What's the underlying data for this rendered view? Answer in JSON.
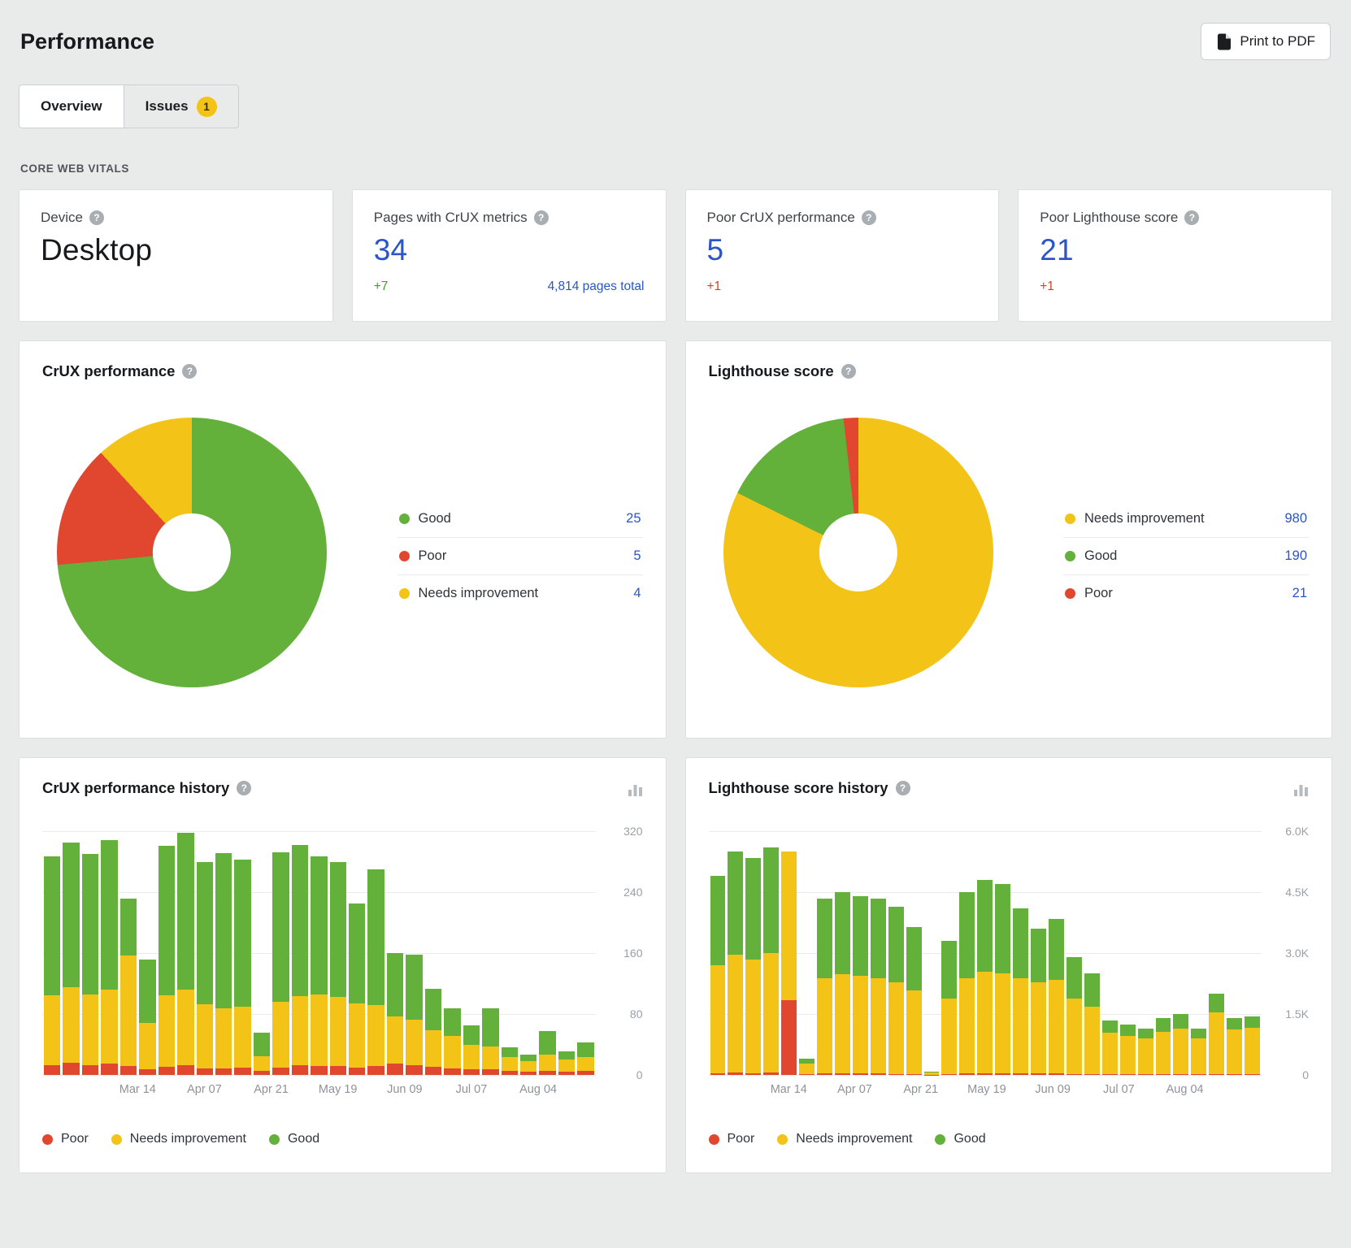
{
  "colors": {
    "good": "#63b13a",
    "poor": "#e1472e",
    "needs_improvement": "#f3c317",
    "blue": "#2a55cb",
    "delta_up": "#3f9e32",
    "delta_down": "#da3f28"
  },
  "header": {
    "title": "Performance",
    "print_button": "Print to PDF"
  },
  "tabs": [
    {
      "label": "Overview",
      "active": true
    },
    {
      "label": "Issues",
      "badge": "1"
    }
  ],
  "section_label": "CORE WEB VITALS",
  "stat_cards": [
    {
      "label": "Device",
      "value": "Desktop"
    },
    {
      "label": "Pages with CrUX metrics",
      "value": "34",
      "delta": "+7",
      "extra_link": "4,814 pages total"
    },
    {
      "label": "Poor CrUX performance",
      "value": "5",
      "delta": "+1"
    },
    {
      "label": "Poor Lighthouse score",
      "value": "21",
      "delta": "+1"
    }
  ],
  "chart_data": [
    {
      "type": "pie",
      "title": "CrUX performance",
      "donut": true,
      "slices": [
        {
          "label": "Good",
          "value": 25,
          "color_key": "good"
        },
        {
          "label": "Poor",
          "value": 5,
          "color_key": "poor"
        },
        {
          "label": "Needs improvement",
          "value": 4,
          "color_key": "needs_improvement"
        }
      ]
    },
    {
      "type": "pie",
      "title": "Lighthouse score",
      "donut": true,
      "slices": [
        {
          "label": "Needs improvement",
          "value": 980,
          "color_key": "needs_improvement"
        },
        {
          "label": "Good",
          "value": 190,
          "color_key": "good"
        },
        {
          "label": "Poor",
          "value": 21,
          "color_key": "poor"
        }
      ]
    },
    {
      "type": "bar",
      "title": "CrUX performance history",
      "stacked": true,
      "ymax": 320,
      "y_ticks": [
        "320",
        "240",
        "160",
        "80",
        "0"
      ],
      "series_order": [
        "poor",
        "needs_improvement",
        "good"
      ],
      "legend": [
        {
          "label": "Poor",
          "color_key": "poor"
        },
        {
          "label": "Needs improvement",
          "color_key": "needs_improvement"
        },
        {
          "label": "Good",
          "color_key": "good"
        }
      ],
      "x_ticks": [
        {
          "label": "Mar 14",
          "bar": 4.5
        },
        {
          "label": "Apr 07",
          "bar": 8
        },
        {
          "label": "Apr 21",
          "bar": 11.5
        },
        {
          "label": "May 19",
          "bar": 15
        },
        {
          "label": "Jun 09",
          "bar": 18.5
        },
        {
          "label": "Jul 07",
          "bar": 22
        },
        {
          "label": "Aug 04",
          "bar": 25.5
        }
      ],
      "bars": [
        [
          13,
          92,
          182
        ],
        [
          16,
          99,
          190
        ],
        [
          13,
          93,
          184
        ],
        [
          15,
          97,
          196
        ],
        [
          12,
          145,
          75
        ],
        [
          8,
          60,
          84
        ],
        [
          11,
          94,
          196
        ],
        [
          13,
          99,
          206
        ],
        [
          9,
          84,
          187
        ],
        [
          9,
          79,
          203
        ],
        [
          10,
          80,
          193
        ],
        [
          5,
          20,
          30
        ],
        [
          10,
          86,
          196
        ],
        [
          13,
          90,
          199
        ],
        [
          12,
          94,
          181
        ],
        [
          12,
          90,
          177
        ],
        [
          10,
          84,
          131
        ],
        [
          12,
          80,
          178
        ],
        [
          15,
          62,
          83
        ],
        [
          13,
          60,
          85
        ],
        [
          11,
          48,
          54
        ],
        [
          9,
          42,
          36
        ],
        [
          8,
          31,
          26
        ],
        [
          7,
          30,
          50
        ],
        [
          5,
          18,
          13
        ],
        [
          4,
          14,
          9
        ],
        [
          5,
          22,
          31
        ],
        [
          4,
          16,
          11
        ],
        [
          5,
          18,
          20
        ]
      ]
    },
    {
      "type": "bar",
      "title": "Lighthouse score history",
      "stacked": true,
      "ymax": 6000,
      "y_ticks": [
        "6.0K",
        "4.5K",
        "3.0K",
        "1.5K",
        "0"
      ],
      "series_order": [
        "poor",
        "needs_improvement",
        "good"
      ],
      "legend": [
        {
          "label": "Poor",
          "color_key": "poor"
        },
        {
          "label": "Needs improvement",
          "color_key": "needs_improvement"
        },
        {
          "label": "Good",
          "color_key": "good"
        }
      ],
      "x_ticks": [
        {
          "label": "Mar 14",
          "bar": 4
        },
        {
          "label": "Apr 07",
          "bar": 7.7
        },
        {
          "label": "Apr 21",
          "bar": 11.4
        },
        {
          "label": "May 19",
          "bar": 15.1
        },
        {
          "label": "Jun 09",
          "bar": 18.8
        },
        {
          "label": "Jul 07",
          "bar": 22.5
        },
        {
          "label": "Aug 04",
          "bar": 26.2
        }
      ],
      "bars": [
        [
          50,
          2650,
          2200
        ],
        [
          60,
          2900,
          2540
        ],
        [
          50,
          2800,
          2500
        ],
        [
          60,
          2950,
          2590
        ],
        [
          1850,
          3650,
          0
        ],
        [
          30,
          250,
          120
        ],
        [
          40,
          2350,
          1960
        ],
        [
          40,
          2450,
          2010
        ],
        [
          40,
          2400,
          1960
        ],
        [
          40,
          2350,
          1960
        ],
        [
          30,
          2250,
          1870
        ],
        [
          30,
          2050,
          1570
        ],
        [
          10,
          60,
          20
        ],
        [
          30,
          1850,
          1420
        ],
        [
          40,
          2350,
          2110
        ],
        [
          50,
          2500,
          2250
        ],
        [
          50,
          2450,
          2200
        ],
        [
          40,
          2350,
          1710
        ],
        [
          40,
          2250,
          1310
        ],
        [
          40,
          2300,
          1510
        ],
        [
          30,
          1850,
          1020
        ],
        [
          30,
          1650,
          820
        ],
        [
          20,
          1020,
          310
        ],
        [
          20,
          950,
          280
        ],
        [
          20,
          880,
          250
        ],
        [
          20,
          1050,
          330
        ],
        [
          20,
          1130,
          350
        ],
        [
          20,
          890,
          240
        ],
        [
          20,
          1530,
          450
        ],
        [
          20,
          1100,
          280
        ],
        [
          20,
          1140,
          290
        ]
      ]
    }
  ]
}
